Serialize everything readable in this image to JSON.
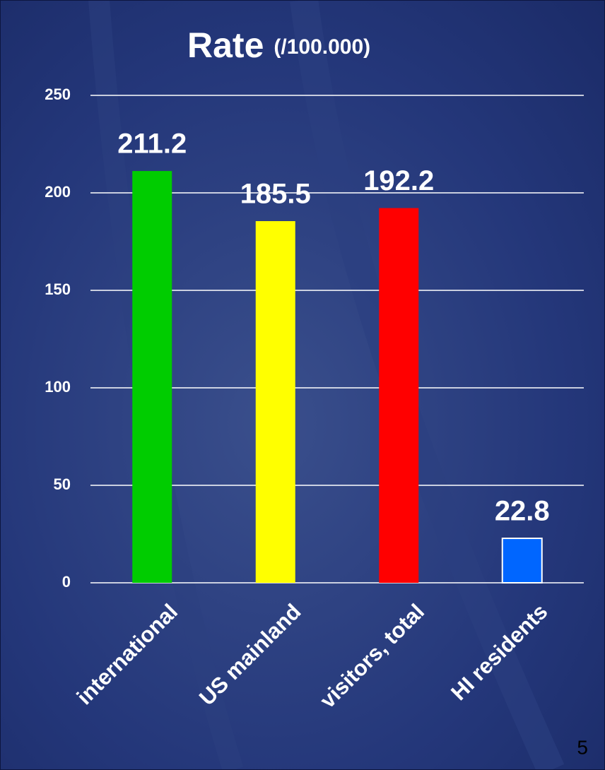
{
  "chart_data": {
    "type": "bar",
    "title": "Rate",
    "subtitle": "(/100.000)",
    "categories": [
      "international",
      "US mainland",
      "visitors, total",
      "HI residents"
    ],
    "values": [
      211.2,
      185.5,
      192.2,
      22.8
    ],
    "colors": [
      "#00cc00",
      "#ffff00",
      "#ff0000",
      "#0066ff"
    ],
    "ylim": [
      0,
      250
    ],
    "yticks": [
      0,
      50,
      100,
      150,
      200,
      250
    ],
    "grid": true
  },
  "slide_number": 5
}
